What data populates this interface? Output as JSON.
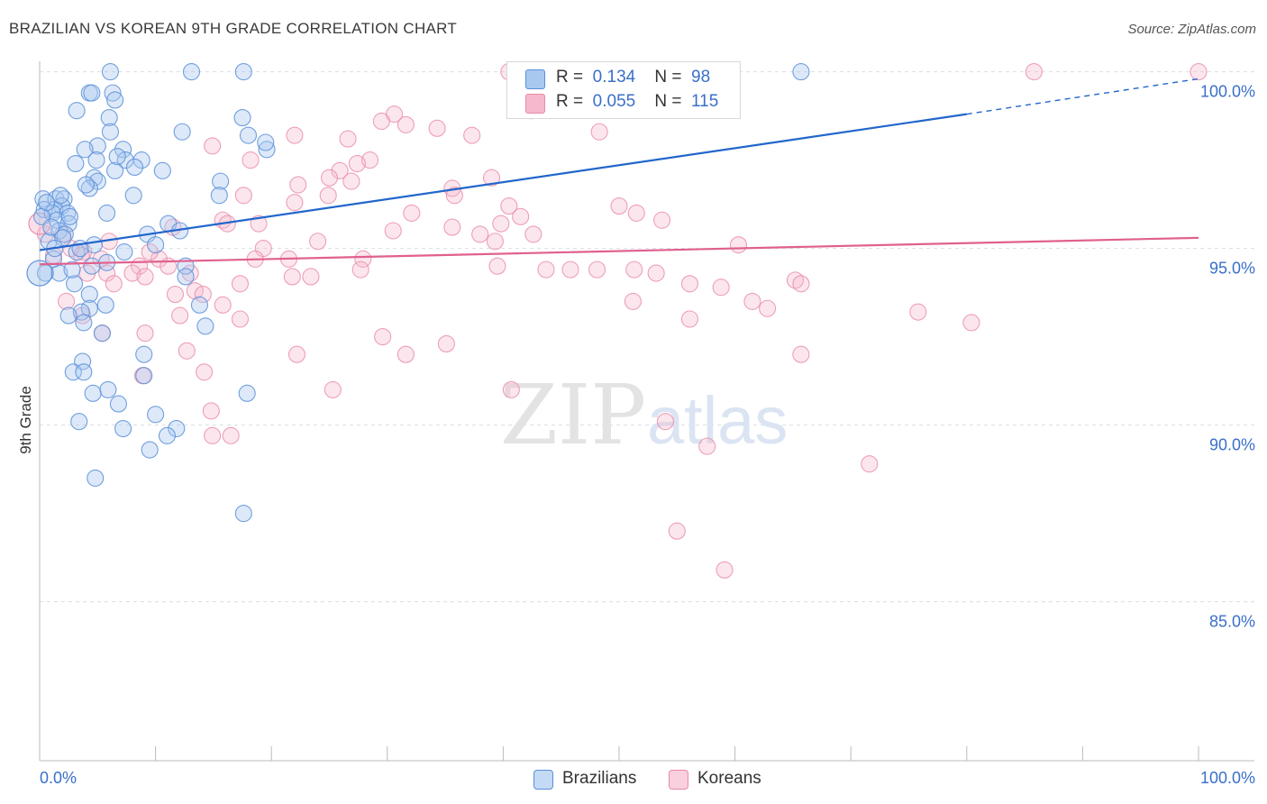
{
  "title": "BRAZILIAN VS KOREAN 9TH GRADE CORRELATION CHART",
  "source": "Source: ZipAtlas.com",
  "watermark": {
    "zip": "ZIP",
    "atlas": "atlas"
  },
  "legend_top": {
    "rows": [
      {
        "r_label": "R =",
        "r_value": "0.134",
        "n_label": "N =",
        "n_value": "98"
      },
      {
        "r_label": "R =",
        "r_value": "0.055",
        "n_label": "N =",
        "n_value": "115"
      }
    ]
  },
  "legend_bottom": {
    "items": [
      "Brazilians",
      "Koreans"
    ]
  },
  "colors": {
    "blue_fill": "#a9c8f0",
    "blue_stroke": "#5b8fd8",
    "blue_line": "#2266cc",
    "pink_fill": "#f6b8cc",
    "pink_stroke": "#e889a8",
    "pink_line": "#e0608e",
    "tick_label": "#3a6fc9",
    "grid": "#d9dde6"
  },
  "chart_data": {
    "type": "scatter",
    "title": "BRAZILIAN VS KOREAN 9TH GRADE CORRELATION CHART",
    "xlabel": "",
    "ylabel": "9th Grade",
    "xlim": [
      0,
      100
    ],
    "ylim": [
      80.5,
      100.5
    ],
    "x_tick_labels": [
      "0.0%",
      "100.0%"
    ],
    "y_ticks": [
      85,
      90,
      95,
      100
    ],
    "y_tick_labels": [
      "85.0%",
      "90.0%",
      "95.0%",
      "100.0%"
    ],
    "grid": "horizontal dashed",
    "legend": "bottom",
    "series": [
      {
        "name": "Brazilians",
        "r": 0.134,
        "n": 98,
        "trend": {
          "x0": 0,
          "y0": 94.95,
          "x1": 80,
          "y1": 98.8,
          "dashed_to": 100,
          "dashed_y": 99.8
        },
        "points": [
          [
            6.1,
            100
          ],
          [
            13.1,
            100
          ],
          [
            17.6,
            100
          ],
          [
            65.7,
            100
          ],
          [
            4.3,
            99.4
          ],
          [
            4.5,
            99.4
          ],
          [
            6.3,
            99.4
          ],
          [
            6.5,
            99.2
          ],
          [
            3.2,
            98.9
          ],
          [
            6.0,
            98.7
          ],
          [
            17.5,
            98.7
          ],
          [
            6.1,
            98.3
          ],
          [
            12.3,
            98.3
          ],
          [
            5.0,
            97.9
          ],
          [
            3.9,
            97.8
          ],
          [
            7.2,
            97.8
          ],
          [
            19.6,
            97.8
          ],
          [
            4.9,
            97.5
          ],
          [
            7.4,
            97.5
          ],
          [
            8.8,
            97.5
          ],
          [
            3.1,
            97.4
          ],
          [
            6.5,
            97.2
          ],
          [
            10.6,
            97.2
          ],
          [
            4.7,
            97.0
          ],
          [
            5.0,
            96.9
          ],
          [
            15.6,
            96.9
          ],
          [
            4.3,
            96.7
          ],
          [
            8.1,
            96.5
          ],
          [
            15.5,
            96.5
          ],
          [
            0.3,
            96.4
          ],
          [
            1.4,
            96.4
          ],
          [
            2.1,
            96.4
          ],
          [
            1.9,
            96.2
          ],
          [
            0.4,
            96.1
          ],
          [
            1.3,
            96.1
          ],
          [
            2.4,
            96.0
          ],
          [
            1.1,
            96.0
          ],
          [
            5.8,
            96.0
          ],
          [
            1.5,
            95.8
          ],
          [
            2.5,
            95.7
          ],
          [
            11.1,
            95.7
          ],
          [
            1.7,
            95.5
          ],
          [
            12.1,
            95.5
          ],
          [
            2.2,
            95.4
          ],
          [
            9.3,
            95.4
          ],
          [
            4.7,
            95.1
          ],
          [
            10.0,
            95.1
          ],
          [
            3.2,
            94.9
          ],
          [
            7.3,
            94.9
          ],
          [
            5.8,
            94.6
          ],
          [
            4.5,
            94.5
          ],
          [
            12.6,
            94.5
          ],
          [
            0.5,
            94.3
          ],
          [
            12.6,
            94.2
          ],
          [
            1.7,
            94.3
          ],
          [
            3.0,
            94.0
          ],
          [
            4.3,
            93.7
          ],
          [
            5.7,
            93.4
          ],
          [
            13.8,
            93.4
          ],
          [
            4.3,
            93.3
          ],
          [
            3.6,
            93.2
          ],
          [
            2.5,
            93.1
          ],
          [
            3.8,
            92.9
          ],
          [
            14.3,
            92.8
          ],
          [
            5.4,
            92.6
          ],
          [
            9.0,
            92.0
          ],
          [
            3.7,
            91.8
          ],
          [
            2.9,
            91.5
          ],
          [
            3.8,
            91.5
          ],
          [
            9.0,
            91.4
          ],
          [
            5.9,
            91.0
          ],
          [
            17.9,
            90.9
          ],
          [
            4.6,
            90.9
          ],
          [
            6.8,
            90.6
          ],
          [
            10.0,
            90.3
          ],
          [
            3.4,
            90.1
          ],
          [
            7.2,
            89.9
          ],
          [
            11.8,
            89.9
          ],
          [
            11.0,
            89.7
          ],
          [
            9.5,
            89.3
          ],
          [
            4.8,
            88.5
          ],
          [
            17.6,
            87.5
          ],
          [
            19.5,
            98.0
          ],
          [
            18.0,
            98.2
          ],
          [
            0.2,
            95.9
          ],
          [
            0.8,
            95.2
          ],
          [
            1.0,
            95.6
          ],
          [
            2.0,
            95.3
          ],
          [
            3.5,
            95.0
          ],
          [
            1.2,
            94.7
          ],
          [
            2.8,
            94.4
          ],
          [
            0.6,
            96.3
          ],
          [
            6.7,
            97.6
          ],
          [
            8.2,
            97.3
          ],
          [
            4.0,
            96.8
          ],
          [
            1.8,
            96.5
          ],
          [
            2.6,
            95.9
          ],
          [
            1.3,
            95.0
          ]
        ]
      },
      {
        "name": "Koreans",
        "r": 0.055,
        "n": 115,
        "trend": {
          "x0": 0,
          "y0": 94.55,
          "x1": 100,
          "y1": 95.3
        },
        "points": [
          [
            40.5,
            100
          ],
          [
            48.6,
            100
          ],
          [
            85.8,
            100
          ],
          [
            100,
            100
          ],
          [
            42.4,
            98.9
          ],
          [
            30.6,
            98.8
          ],
          [
            29.5,
            98.6
          ],
          [
            31.6,
            98.5
          ],
          [
            34.3,
            98.4
          ],
          [
            37.3,
            98.2
          ],
          [
            48.3,
            98.3
          ],
          [
            26.6,
            98.1
          ],
          [
            22.0,
            98.2
          ],
          [
            14.9,
            97.9
          ],
          [
            28.5,
            97.5
          ],
          [
            27.4,
            97.4
          ],
          [
            18.2,
            97.5
          ],
          [
            25.9,
            97.2
          ],
          [
            25.0,
            97.0
          ],
          [
            26.9,
            96.9
          ],
          [
            22.3,
            96.8
          ],
          [
            35.6,
            96.7
          ],
          [
            39.0,
            97.0
          ],
          [
            35.8,
            96.5
          ],
          [
            17.6,
            96.5
          ],
          [
            24.9,
            96.5
          ],
          [
            22.0,
            96.3
          ],
          [
            32.1,
            96.0
          ],
          [
            40.5,
            96.2
          ],
          [
            50.0,
            96.2
          ],
          [
            51.5,
            96.0
          ],
          [
            41.5,
            95.9
          ],
          [
            15.8,
            95.8
          ],
          [
            16.2,
            95.7
          ],
          [
            18.9,
            95.7
          ],
          [
            39.8,
            95.7
          ],
          [
            53.7,
            95.8
          ],
          [
            35.6,
            95.6
          ],
          [
            30.5,
            95.5
          ],
          [
            11.5,
            95.6
          ],
          [
            6.0,
            95.2
          ],
          [
            24.0,
            95.2
          ],
          [
            38.0,
            95.4
          ],
          [
            42.6,
            95.4
          ],
          [
            39.3,
            95.2
          ],
          [
            19.3,
            95.0
          ],
          [
            18.6,
            94.7
          ],
          [
            21.5,
            94.7
          ],
          [
            27.9,
            94.7
          ],
          [
            60.3,
            95.1
          ],
          [
            2.0,
            95.4
          ],
          [
            3.8,
            94.9
          ],
          [
            5.3,
            94.7
          ],
          [
            8.6,
            94.5
          ],
          [
            10.3,
            94.7
          ],
          [
            11.1,
            94.5
          ],
          [
            13.0,
            94.3
          ],
          [
            5.8,
            94.3
          ],
          [
            8.0,
            94.3
          ],
          [
            9.1,
            94.2
          ],
          [
            21.8,
            94.2
          ],
          [
            23.4,
            94.2
          ],
          [
            27.7,
            94.4
          ],
          [
            39.5,
            94.5
          ],
          [
            43.7,
            94.4
          ],
          [
            45.8,
            94.4
          ],
          [
            48.1,
            94.4
          ],
          [
            51.3,
            94.4
          ],
          [
            53.2,
            94.3
          ],
          [
            56.1,
            94.0
          ],
          [
            58.8,
            93.9
          ],
          [
            65.2,
            94.1
          ],
          [
            65.7,
            94.0
          ],
          [
            3.6,
            94.8
          ],
          [
            4.1,
            94.3
          ],
          [
            17.3,
            94.0
          ],
          [
            13.4,
            93.8
          ],
          [
            14.1,
            93.7
          ],
          [
            11.7,
            93.7
          ],
          [
            15.8,
            93.4
          ],
          [
            51.2,
            93.5
          ],
          [
            12.1,
            93.1
          ],
          [
            17.3,
            93.0
          ],
          [
            56.1,
            93.0
          ],
          [
            61.5,
            93.5
          ],
          [
            62.8,
            93.3
          ],
          [
            75.8,
            93.2
          ],
          [
            80.4,
            92.9
          ],
          [
            9.1,
            92.6
          ],
          [
            29.6,
            92.5
          ],
          [
            35.1,
            92.3
          ],
          [
            12.7,
            92.1
          ],
          [
            22.2,
            92.0
          ],
          [
            31.6,
            92.0
          ],
          [
            65.7,
            92.0
          ],
          [
            14.2,
            91.5
          ],
          [
            8.9,
            91.4
          ],
          [
            25.3,
            91.0
          ],
          [
            40.7,
            91.0
          ],
          [
            14.8,
            90.4
          ],
          [
            54.0,
            90.1
          ],
          [
            14.9,
            89.7
          ],
          [
            16.5,
            89.7
          ],
          [
            57.6,
            89.4
          ],
          [
            71.6,
            88.9
          ],
          [
            55.0,
            87.0
          ],
          [
            59.1,
            85.9
          ],
          [
            3.7,
            93.1
          ],
          [
            5.4,
            92.6
          ],
          [
            2.3,
            93.5
          ],
          [
            6.4,
            94.0
          ],
          [
            1.2,
            94.8
          ],
          [
            0.5,
            95.4
          ],
          [
            2.7,
            95.0
          ],
          [
            9.5,
            94.9
          ]
        ]
      }
    ]
  }
}
